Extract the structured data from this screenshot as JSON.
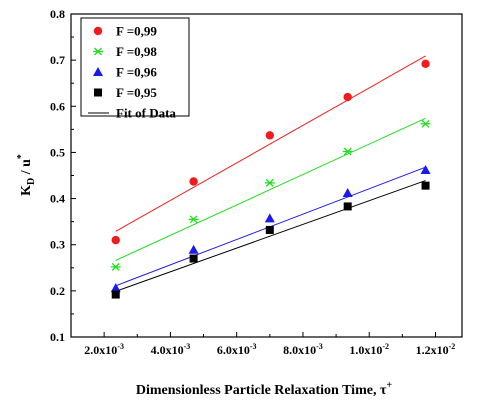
{
  "chart_data": {
    "type": "scatter",
    "xlabel": "Dimensionless Particle Relaxation Time, τ",
    "xlabel_sup": "+",
    "ylabel": "K",
    "ylabel_sub": "D",
    "ylabel_rest": " / u",
    "ylabel_sup": "*",
    "xlim": [
      0.001,
      0.0128
    ],
    "ylim": [
      0.1,
      0.8
    ],
    "x_ticks": [
      {
        "value": 0.002,
        "mantissa": "2.0x10",
        "exp": "-3"
      },
      {
        "value": 0.004,
        "mantissa": "4.0x10",
        "exp": "-3"
      },
      {
        "value": 0.006,
        "mantissa": "6.0x10",
        "exp": "-3"
      },
      {
        "value": 0.008,
        "mantissa": "8.0x10",
        "exp": "-3"
      },
      {
        "value": 0.01,
        "mantissa": "1.0x10",
        "exp": "-2"
      },
      {
        "value": 0.012,
        "mantissa": "1.2x10",
        "exp": "-2"
      }
    ],
    "y_ticks": [
      "0.1",
      "0.2",
      "0.3",
      "0.4",
      "0.5",
      "0.6",
      "0.7",
      "0.8"
    ],
    "grid": false,
    "legend_position": "top-left",
    "x": [
      0.00235,
      0.0047,
      0.007,
      0.00935,
      0.0117
    ],
    "series": [
      {
        "name": "F =0,99",
        "marker": "circle",
        "color": "#ee1c1c",
        "values": [
          0.31,
          0.437,
          0.537,
          0.62,
          0.692
        ],
        "fit": [
          0.329,
          0.709
        ]
      },
      {
        "name": "F =0,98",
        "marker": "asterisk",
        "color": "#22dd22",
        "values": [
          0.252,
          0.355,
          0.434,
          0.502,
          0.562
        ],
        "fit": [
          0.266,
          0.574
        ]
      },
      {
        "name": "F =0,96",
        "marker": "triangle",
        "color": "#1a1aee",
        "values": [
          0.206,
          0.289,
          0.357,
          0.412,
          0.462
        ],
        "fit": [
          0.211,
          0.468
        ]
      },
      {
        "name": "F =0,95",
        "marker": "square",
        "color": "#000000",
        "values": [
          0.192,
          0.27,
          0.332,
          0.383,
          0.428
        ],
        "fit": [
          0.199,
          0.439
        ]
      }
    ],
    "fit_legend_label": "Fit of Data"
  }
}
